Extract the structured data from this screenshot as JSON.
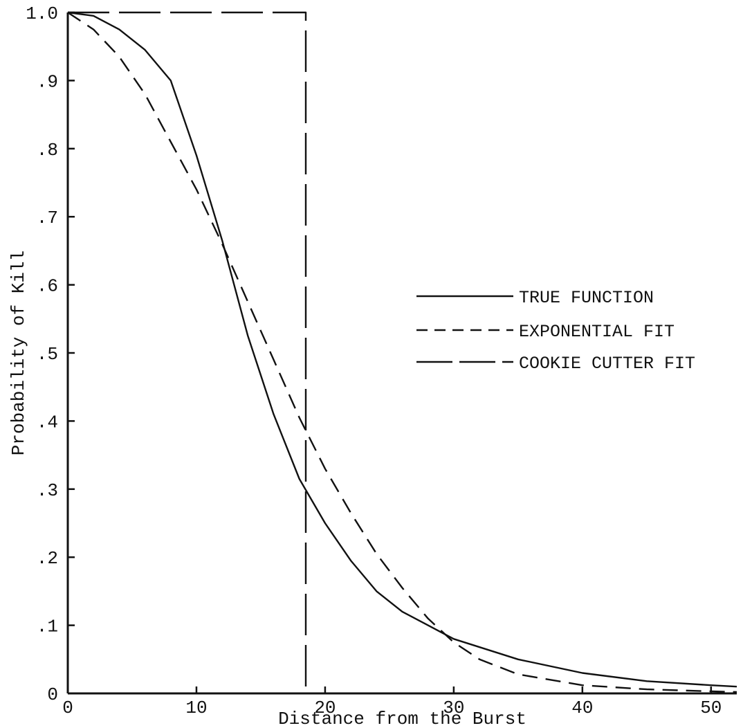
{
  "chart_data": {
    "type": "line",
    "title": "",
    "xlabel": "Distance from the Burst",
    "ylabel": "Probability of Kill",
    "xlim": [
      0,
      52
    ],
    "ylim": [
      0,
      1.0
    ],
    "x_ticks": [
      0,
      10,
      20,
      30,
      40,
      50
    ],
    "x_tick_labels": [
      "0",
      "10",
      "20",
      "30",
      "40",
      "50"
    ],
    "y_ticks": [
      0,
      0.1,
      0.2,
      0.3,
      0.4,
      0.5,
      0.6,
      0.7,
      0.8,
      0.9,
      1.0
    ],
    "y_tick_labels": [
      "0",
      ".1",
      ".2",
      ".3",
      ".4",
      ".5",
      ".6",
      ".7",
      ".8",
      ".9",
      "1.0"
    ],
    "grid": false,
    "legend_position": "right",
    "colors": {
      "line": "#111111"
    },
    "series": [
      {
        "name": "TRUE FUNCTION",
        "style": "solid",
        "x": [
          0,
          2,
          4,
          6,
          8,
          10,
          12,
          14,
          16,
          18,
          20,
          22,
          24,
          26,
          28,
          30,
          35,
          40,
          45,
          50,
          52
        ],
        "y": [
          1.0,
          0.995,
          0.975,
          0.945,
          0.9,
          0.79,
          0.665,
          0.525,
          0.41,
          0.315,
          0.25,
          0.195,
          0.15,
          0.12,
          0.1,
          0.08,
          0.05,
          0.03,
          0.018,
          0.012,
          0.01
        ]
      },
      {
        "name": "EXPONENTIAL FIT",
        "style": "dashed",
        "x": [
          0,
          2,
          4,
          6,
          8,
          10,
          12,
          14,
          16,
          18,
          20,
          22,
          24,
          26,
          28,
          30,
          32,
          35,
          40,
          45,
          50,
          52
        ],
        "y": [
          1.0,
          0.975,
          0.935,
          0.88,
          0.81,
          0.74,
          0.66,
          0.575,
          0.49,
          0.405,
          0.33,
          0.265,
          0.205,
          0.155,
          0.11,
          0.075,
          0.05,
          0.028,
          0.012,
          0.006,
          0.003,
          0.002
        ]
      },
      {
        "name": "COOKIE CUTTER FIT",
        "style": "long-dash",
        "x": [
          0,
          18.5,
          18.5,
          52
        ],
        "y": [
          1.0,
          1.0,
          0.0,
          0.0
        ]
      }
    ]
  }
}
